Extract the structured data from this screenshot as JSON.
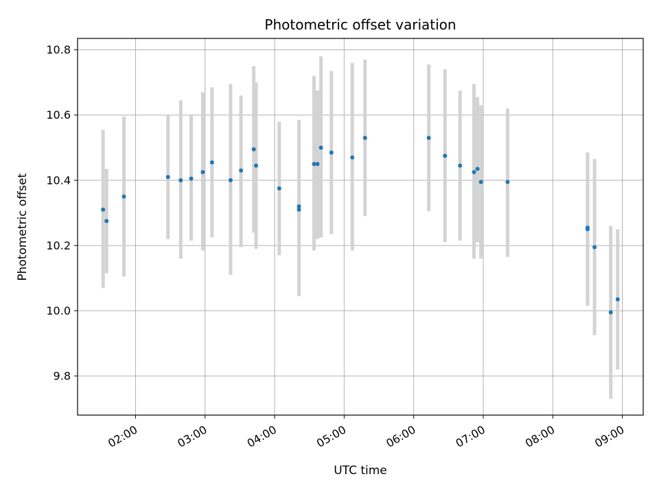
{
  "chart_data": {
    "type": "scatter",
    "title": "Photometric offset variation",
    "xlabel": "UTC time",
    "ylabel": "Photometric offset",
    "x_tick_labels": [
      "02:00",
      "03:00",
      "04:00",
      "05:00",
      "06:00",
      "07:00",
      "08:00",
      "09:00"
    ],
    "y_tick_labels": [
      "9.8",
      "10.0",
      "10.2",
      "10.4",
      "10.6",
      "10.8"
    ],
    "xlim": [
      "01:10",
      "09:18"
    ],
    "ylim": [
      9.68,
      10.835
    ],
    "grid": true,
    "legend": false,
    "point_color": "#1f77b4",
    "errorbar_color": "#d3d3d3",
    "points": [
      {
        "x": "01:32",
        "y": 10.31,
        "ylow": 10.07,
        "yhigh": 10.555
      },
      {
        "x": "01:35",
        "y": 10.275,
        "ylow": 10.115,
        "yhigh": 10.435
      },
      {
        "x": "01:50",
        "y": 10.35,
        "ylow": 10.105,
        "yhigh": 10.595
      },
      {
        "x": "02:28",
        "y": 10.41,
        "ylow": 10.22,
        "yhigh": 10.6
      },
      {
        "x": "02:39",
        "y": 10.4,
        "ylow": 10.16,
        "yhigh": 10.645
      },
      {
        "x": "02:48",
        "y": 10.405,
        "ylow": 10.215,
        "yhigh": 10.6
      },
      {
        "x": "02:58",
        "y": 10.425,
        "ylow": 10.185,
        "yhigh": 10.67
      },
      {
        "x": "03:06",
        "y": 10.455,
        "ylow": 10.225,
        "yhigh": 10.685
      },
      {
        "x": "03:22",
        "y": 10.4,
        "ylow": 10.11,
        "yhigh": 10.695
      },
      {
        "x": "03:31",
        "y": 10.43,
        "ylow": 10.195,
        "yhigh": 10.66
      },
      {
        "x": "03:42",
        "y": 10.495,
        "ylow": 10.24,
        "yhigh": 10.75
      },
      {
        "x": "03:44",
        "y": 10.445,
        "ylow": 10.19,
        "yhigh": 10.7
      },
      {
        "x": "04:04",
        "y": 10.375,
        "ylow": 10.17,
        "yhigh": 10.58
      },
      {
        "x": "04:21",
        "y": 10.31,
        "ylow": 10.045,
        "yhigh": 10.585
      },
      {
        "x": "04:21",
        "y": 10.32,
        "ylow": 10.05,
        "yhigh": 10.58
      },
      {
        "x": "04:34",
        "y": 10.45,
        "ylow": 10.185,
        "yhigh": 10.72
      },
      {
        "x": "04:37",
        "y": 10.45,
        "ylow": 10.22,
        "yhigh": 10.675
      },
      {
        "x": "04:40",
        "y": 10.5,
        "ylow": 10.225,
        "yhigh": 10.78
      },
      {
        "x": "04:49",
        "y": 10.485,
        "ylow": 10.235,
        "yhigh": 10.735
      },
      {
        "x": "05:07",
        "y": 10.47,
        "ylow": 10.185,
        "yhigh": 10.76
      },
      {
        "x": "05:18",
        "y": 10.53,
        "ylow": 10.29,
        "yhigh": 10.77
      },
      {
        "x": "06:13",
        "y": 10.53,
        "ylow": 10.305,
        "yhigh": 10.755
      },
      {
        "x": "06:27",
        "y": 10.475,
        "ylow": 10.21,
        "yhigh": 10.74
      },
      {
        "x": "06:40",
        "y": 10.445,
        "ylow": 10.215,
        "yhigh": 10.675
      },
      {
        "x": "06:52",
        "y": 10.425,
        "ylow": 10.16,
        "yhigh": 10.695
      },
      {
        "x": "06:55",
        "y": 10.435,
        "ylow": 10.21,
        "yhigh": 10.655
      },
      {
        "x": "06:58",
        "y": 10.395,
        "ylow": 10.16,
        "yhigh": 10.63
      },
      {
        "x": "07:21",
        "y": 10.395,
        "ylow": 10.165,
        "yhigh": 10.62
      },
      {
        "x": "08:30",
        "y": 10.25,
        "ylow": 10.015,
        "yhigh": 10.485
      },
      {
        "x": "08:30",
        "y": 10.255,
        "ylow": 10.025,
        "yhigh": 10.485
      },
      {
        "x": "08:36",
        "y": 10.195,
        "ylow": 9.925,
        "yhigh": 10.465
      },
      {
        "x": "08:50",
        "y": 9.995,
        "ylow": 9.73,
        "yhigh": 10.26
      },
      {
        "x": "08:56",
        "y": 10.035,
        "ylow": 9.82,
        "yhigh": 10.25
      }
    ]
  }
}
